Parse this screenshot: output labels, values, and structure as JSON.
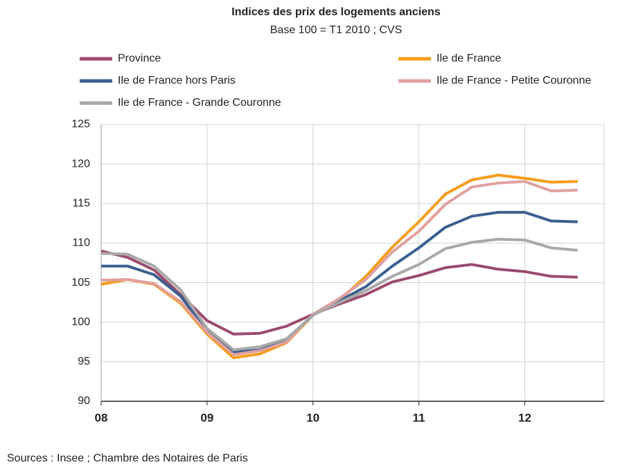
{
  "chart_data": {
    "type": "line",
    "title": "Indices des prix des logements anciens",
    "subtitle": "Base 100 = T1 2010 ; CVS",
    "source": "Sources : Insee ; Chambre des Notaires de Paris",
    "x": [
      2008,
      2008.25,
      2008.5,
      2008.75,
      2009,
      2009.25,
      2009.5,
      2009.75,
      2010,
      2010.25,
      2010.5,
      2010.75,
      2011,
      2011.25,
      2011.5,
      2011.75,
      2012,
      2012.25,
      2012.5
    ],
    "xlim": [
      2008,
      2012.75
    ],
    "xticks": [
      {
        "value": 2008,
        "label": "08"
      },
      {
        "value": 2009,
        "label": "09"
      },
      {
        "value": 2010,
        "label": "10"
      },
      {
        "value": 2011,
        "label": "11"
      },
      {
        "value": 2012,
        "label": "12"
      }
    ],
    "ylim": [
      90,
      125
    ],
    "yticks": [
      90,
      95,
      100,
      105,
      110,
      115,
      120,
      125
    ],
    "grid": true,
    "series": [
      {
        "name": "Province",
        "color": "#9b4a6e",
        "values": [
          109.0,
          108.2,
          106.6,
          103.5,
          100.2,
          98.5,
          98.6,
          99.5,
          101.0,
          102.3,
          103.5,
          105.1,
          105.9,
          106.9,
          107.3,
          106.7,
          106.4,
          105.8,
          105.7
        ]
      },
      {
        "name": "Ile de France",
        "color": "#f59c1a",
        "values": [
          104.8,
          105.4,
          104.8,
          102.4,
          98.5,
          95.5,
          96.0,
          97.4,
          100.9,
          102.8,
          105.8,
          109.5,
          112.7,
          116.2,
          118.0,
          118.6,
          118.2,
          117.7,
          117.8
        ]
      },
      {
        "name": "Ile de France hors Paris",
        "color": "#3a5f8f",
        "values": [
          107.1,
          107.1,
          106.0,
          103.3,
          98.9,
          96.2,
          96.5,
          97.7,
          100.9,
          102.7,
          104.5,
          107.1,
          109.4,
          112.0,
          113.4,
          113.9,
          113.9,
          112.8,
          112.7
        ]
      },
      {
        "name": "Ile de France - Petite Couronne",
        "color": "#e0a0a0",
        "values": [
          105.3,
          105.4,
          104.9,
          102.6,
          98.7,
          95.9,
          96.4,
          97.5,
          101.0,
          103.0,
          105.4,
          108.9,
          111.5,
          114.9,
          117.1,
          117.6,
          117.8,
          116.6,
          116.7
        ]
      },
      {
        "name": "Ile de France - Grande Couronne",
        "color": "#a8a8a8",
        "values": [
          108.7,
          108.6,
          107.1,
          104.1,
          99.2,
          96.5,
          96.9,
          97.9,
          100.9,
          102.5,
          104.0,
          105.8,
          107.3,
          109.3,
          110.1,
          110.5,
          110.4,
          109.4,
          109.1
        ]
      }
    ]
  }
}
